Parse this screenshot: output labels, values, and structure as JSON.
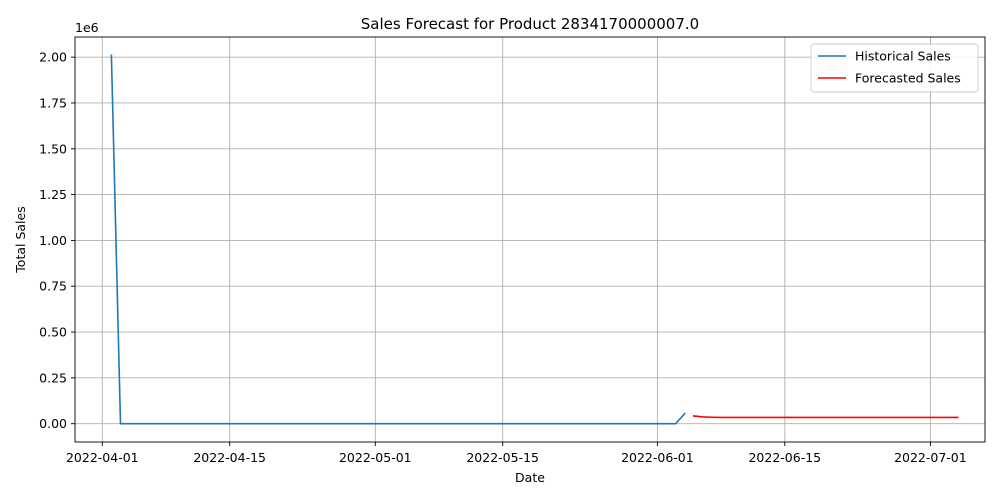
{
  "chart_data": {
    "type": "line",
    "title": "Sales Forecast for Product 2834170000007.0",
    "xlabel": "Date",
    "ylabel": "Total Sales",
    "y_offset_label": "1e6",
    "x_axis_type": "date",
    "xlim": [
      "2022-03-29",
      "2022-07-07"
    ],
    "ylim": [
      -0.1,
      2.11
    ],
    "y_scale_multiplier": 1000000,
    "grid": true,
    "legend_position": "top-right",
    "x_ticks": [
      {
        "value": "2022-04-01",
        "label": "2022-04-01"
      },
      {
        "value": "2022-04-15",
        "label": "2022-04-15"
      },
      {
        "value": "2022-05-01",
        "label": "2022-05-01"
      },
      {
        "value": "2022-05-15",
        "label": "2022-05-15"
      },
      {
        "value": "2022-06-01",
        "label": "2022-06-01"
      },
      {
        "value": "2022-06-15",
        "label": "2022-06-15"
      },
      {
        "value": "2022-07-01",
        "label": "2022-07-01"
      }
    ],
    "y_ticks": [
      {
        "value": 0.0,
        "label": "0.00"
      },
      {
        "value": 0.25,
        "label": "0.25"
      },
      {
        "value": 0.5,
        "label": "0.50"
      },
      {
        "value": 0.75,
        "label": "0.75"
      },
      {
        "value": 1.0,
        "label": "1.00"
      },
      {
        "value": 1.25,
        "label": "1.25"
      },
      {
        "value": 1.5,
        "label": "1.50"
      },
      {
        "value": 1.75,
        "label": "1.75"
      },
      {
        "value": 2.0,
        "label": "2.00"
      }
    ],
    "series": [
      {
        "name": "Historical Sales",
        "color": "#1f77b4",
        "points": [
          {
            "x": "2022-04-02",
            "y": 2.01
          },
          {
            "x": "2022-04-03",
            "y": 0.0
          },
          {
            "x": "2022-06-03",
            "y": 0.0
          },
          {
            "x": "2022-06-04",
            "y": 0.055
          }
        ]
      },
      {
        "name": "Forecasted Sales",
        "color": "#ff0000",
        "points": [
          {
            "x": "2022-06-05",
            "y": 0.042
          },
          {
            "x": "2022-06-06",
            "y": 0.037
          },
          {
            "x": "2022-06-07",
            "y": 0.035
          },
          {
            "x": "2022-06-08",
            "y": 0.034
          },
          {
            "x": "2022-06-15",
            "y": 0.034
          },
          {
            "x": "2022-06-25",
            "y": 0.034
          },
          {
            "x": "2022-07-04",
            "y": 0.034
          }
        ]
      }
    ]
  }
}
